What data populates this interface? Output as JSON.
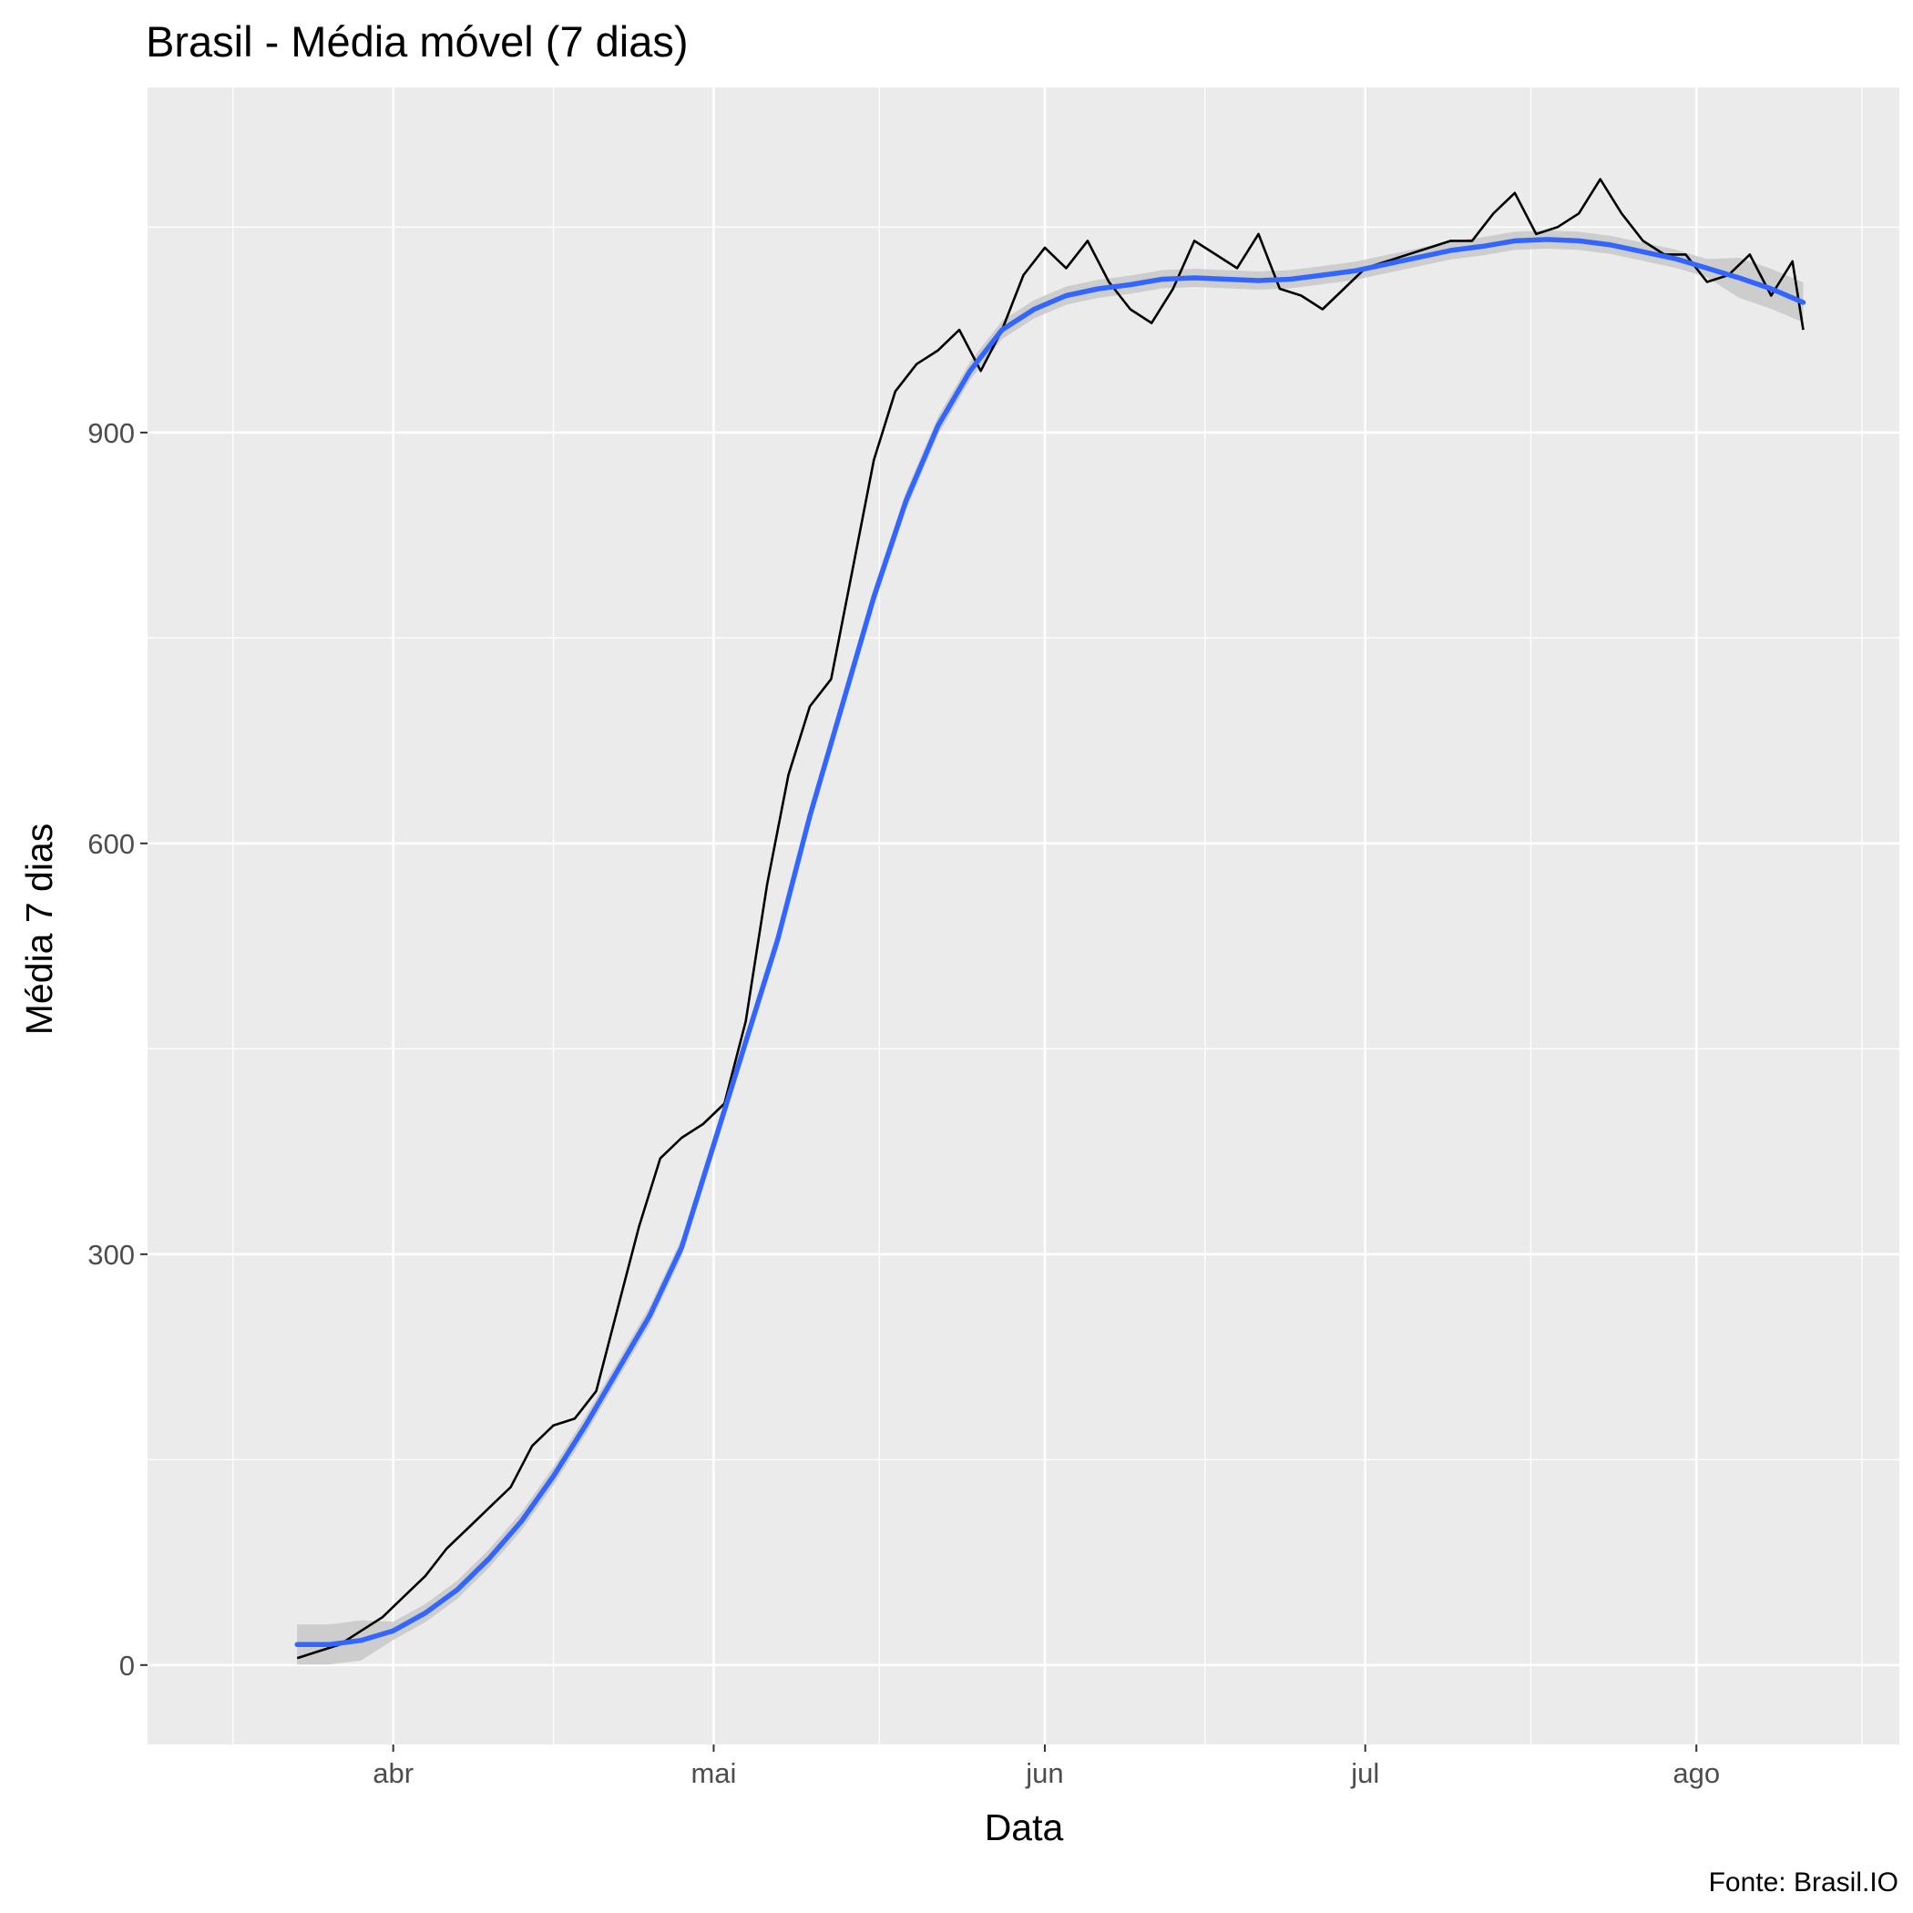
{
  "chart_data": {
    "type": "line",
    "title": "Brasil - Média móvel (7 dias)",
    "xlabel": "Data",
    "ylabel": "Média 7 dias",
    "caption": "Fonte: Brasil.IO",
    "x_tick_labels": [
      "abr",
      "mai",
      "jun",
      "jul",
      "ago"
    ],
    "x_tick_dates": [
      "2020-04-01",
      "2020-05-01",
      "2020-06-01",
      "2020-07-01",
      "2020-08-01"
    ],
    "y_ticks": [
      0,
      300,
      600,
      900
    ],
    "xlim": [
      "2020-03-09",
      "2020-08-20"
    ],
    "ylim": [
      -58,
      1152
    ],
    "grid": true,
    "colors": {
      "panel": "#ebebeb",
      "grid": "#ffffff",
      "raw_line": "#000000",
      "smooth_line": "#3366ff",
      "ribbon": "#c8c8c8"
    },
    "series": [
      {
        "name": "",
        "style": "raw",
        "x": [
          "2020-03-23",
          "2020-03-25",
          "2020-03-27",
          "2020-03-29",
          "2020-03-31",
          "2020-04-02",
          "2020-04-04",
          "2020-04-06",
          "2020-04-08",
          "2020-04-10",
          "2020-04-12",
          "2020-04-13",
          "2020-04-14",
          "2020-04-16",
          "2020-04-18",
          "2020-04-20",
          "2020-04-22",
          "2020-04-24",
          "2020-04-26",
          "2020-04-28",
          "2020-04-30",
          "2020-05-02",
          "2020-05-04",
          "2020-05-06",
          "2020-05-08",
          "2020-05-10",
          "2020-05-12",
          "2020-05-14",
          "2020-05-16",
          "2020-05-18",
          "2020-05-20",
          "2020-05-22",
          "2020-05-24",
          "2020-05-26",
          "2020-05-28",
          "2020-05-30",
          "2020-06-01",
          "2020-06-03",
          "2020-06-05",
          "2020-06-07",
          "2020-06-09",
          "2020-06-11",
          "2020-06-13",
          "2020-06-15",
          "2020-06-17",
          "2020-06-19",
          "2020-06-21",
          "2020-06-23",
          "2020-06-25",
          "2020-06-27",
          "2020-06-29",
          "2020-07-01",
          "2020-07-03",
          "2020-07-05",
          "2020-07-07",
          "2020-07-09",
          "2020-07-11",
          "2020-07-13",
          "2020-07-15",
          "2020-07-17",
          "2020-07-19",
          "2020-07-21",
          "2020-07-23",
          "2020-07-25",
          "2020-07-27",
          "2020-07-29",
          "2020-07-31",
          "2020-08-02",
          "2020-08-04",
          "2020-08-06",
          "2020-08-08",
          "2020-08-10",
          "2020-08-11"
        ],
        "values": [
          5,
          10,
          15,
          25,
          35,
          50,
          65,
          85,
          100,
          115,
          130,
          145,
          160,
          175,
          180,
          200,
          260,
          320,
          370,
          385,
          395,
          410,
          470,
          570,
          650,
          700,
          720,
          800,
          880,
          930,
          950,
          960,
          975,
          945,
          975,
          1015,
          1035,
          1020,
          1040,
          1010,
          990,
          980,
          1005,
          1040,
          1030,
          1020,
          1045,
          1005,
          1000,
          990,
          1005,
          1020,
          1025,
          1030,
          1035,
          1040,
          1040,
          1060,
          1075,
          1045,
          1050,
          1060,
          1085,
          1060,
          1040,
          1030,
          1030,
          1010,
          1015,
          1030,
          1000,
          1025,
          975
        ]
      },
      {
        "name": "",
        "style": "smooth",
        "x": [
          "2020-03-23",
          "2020-03-26",
          "2020-03-29",
          "2020-04-01",
          "2020-04-04",
          "2020-04-07",
          "2020-04-10",
          "2020-04-13",
          "2020-04-16",
          "2020-04-19",
          "2020-04-22",
          "2020-04-25",
          "2020-04-28",
          "2020-05-01",
          "2020-05-04",
          "2020-05-07",
          "2020-05-10",
          "2020-05-13",
          "2020-05-16",
          "2020-05-19",
          "2020-05-22",
          "2020-05-25",
          "2020-05-28",
          "2020-05-31",
          "2020-06-03",
          "2020-06-06",
          "2020-06-09",
          "2020-06-12",
          "2020-06-15",
          "2020-06-18",
          "2020-06-21",
          "2020-06-24",
          "2020-06-27",
          "2020-06-30",
          "2020-07-03",
          "2020-07-06",
          "2020-07-09",
          "2020-07-12",
          "2020-07-15",
          "2020-07-18",
          "2020-07-21",
          "2020-07-24",
          "2020-07-27",
          "2020-07-30",
          "2020-08-02",
          "2020-08-05",
          "2020-08-08",
          "2020-08-11"
        ],
        "values": [
          15,
          15,
          18,
          25,
          38,
          55,
          78,
          105,
          138,
          175,
          215,
          255,
          305,
          380,
          455,
          530,
          620,
          700,
          780,
          850,
          905,
          945,
          975,
          990,
          1000,
          1005,
          1008,
          1012,
          1013,
          1012,
          1011,
          1012,
          1015,
          1018,
          1023,
          1028,
          1033,
          1036,
          1040,
          1041,
          1040,
          1037,
          1032,
          1027,
          1020,
          1013,
          1005,
          995
        ]
      }
    ]
  }
}
